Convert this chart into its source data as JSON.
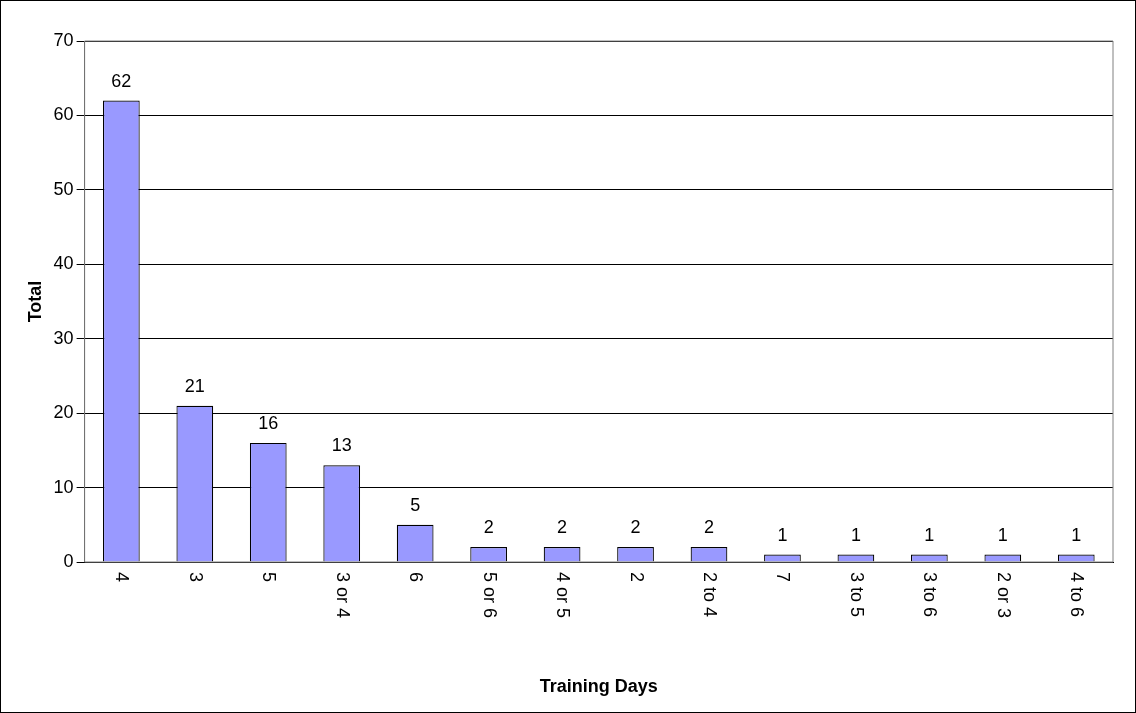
{
  "chart_data": {
    "type": "bar",
    "xlabel": "Training Days",
    "ylabel": "Total",
    "categories": [
      "4",
      "3",
      "5",
      "3 or 4",
      "6",
      "5 or 6",
      "4 or 5",
      "2",
      "2 to 4",
      "7",
      "3 to 5",
      "3 to 6",
      "2 or 3",
      "4 to 6"
    ],
    "values": [
      62,
      21,
      16,
      13,
      5,
      2,
      2,
      2,
      2,
      1,
      1,
      1,
      1,
      1
    ],
    "color": "#9999ff",
    "ylim": [
      0,
      70
    ],
    "yticks": [
      0,
      10,
      20,
      30,
      40,
      50,
      60,
      70
    ],
    "grid": "y",
    "data_labels": true,
    "legend": false
  }
}
